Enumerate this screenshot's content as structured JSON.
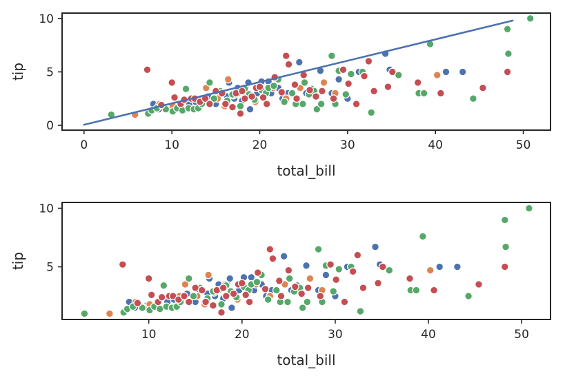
{
  "chart_data": [
    {
      "type": "scatter",
      "title": "",
      "xlabel": "total_bill",
      "ylabel": "tip",
      "xlim": [
        -2.5,
        53.1
      ],
      "ylim": [
        -0.45,
        10.5
      ],
      "xticks": [
        0,
        10,
        20,
        30,
        40,
        50
      ],
      "xtick_labels": [
        "0",
        "10",
        "20",
        "30",
        "40",
        "50"
      ],
      "yticks": [
        0,
        5,
        10
      ],
      "ytick_labels": [
        "0",
        "5",
        "10"
      ],
      "fit_line": {
        "x": [
          0,
          48.8
        ],
        "y": [
          0.05,
          9.8
        ],
        "color": "#4c72b0"
      },
      "grid": false,
      "legend": "none"
    },
    {
      "type": "scatter",
      "title": "",
      "xlabel": "total_bill",
      "ylabel": "tip",
      "xlim": [
        0.7,
        53.1
      ],
      "ylim": [
        0.5,
        10.5
      ],
      "xticks": [
        10,
        20,
        30,
        40,
        50
      ],
      "xtick_labels": [
        "10",
        "20",
        "30",
        "40",
        "50"
      ],
      "yticks": [
        5,
        10
      ],
      "ytick_labels": [
        "5",
        "10"
      ],
      "grid": false,
      "legend": "none"
    }
  ],
  "series": [
    {
      "name": "blue",
      "color": "#4c72b0",
      "points": [
        [
          7.9,
          2.0
        ],
        [
          8.5,
          1.5
        ],
        [
          9.8,
          1.7
        ],
        [
          10.3,
          1.7
        ],
        [
          11.0,
          1.5
        ],
        [
          12.0,
          2.0
        ],
        [
          12.7,
          2.2
        ],
        [
          13.4,
          2.0
        ],
        [
          14.1,
          2.7
        ],
        [
          15.0,
          2.0
        ],
        [
          15.4,
          3.0
        ],
        [
          16.3,
          2.7
        ],
        [
          16.5,
          4.0
        ],
        [
          17.1,
          2.5
        ],
        [
          17.5,
          3.5
        ],
        [
          18.0,
          2.3
        ],
        [
          18.4,
          3.6
        ],
        [
          18.7,
          4.0
        ],
        [
          18.9,
          1.5
        ],
        [
          19.4,
          2.5
        ],
        [
          19.7,
          3.0
        ],
        [
          20.2,
          4.1
        ],
        [
          20.6,
          3.2
        ],
        [
          21.0,
          4.1
        ],
        [
          21.3,
          3.0
        ],
        [
          22.1,
          3.5
        ],
        [
          22.6,
          2.5
        ],
        [
          23.2,
          3.0
        ],
        [
          24.5,
          5.9
        ],
        [
          24.8,
          2.0
        ],
        [
          25.3,
          3.0
        ],
        [
          25.9,
          3.4
        ],
        [
          26.9,
          5.1
        ],
        [
          28.2,
          3.0
        ],
        [
          29.0,
          4.3
        ],
        [
          30.0,
          2.5
        ],
        [
          31.3,
          5.0
        ],
        [
          34.3,
          6.7
        ],
        [
          34.8,
          5.2
        ],
        [
          40.2,
          4.7
        ],
        [
          41.2,
          5.0
        ],
        [
          43.1,
          5.0
        ]
      ]
    },
    {
      "name": "orange",
      "color": "#dd8452",
      "points": [
        [
          5.8,
          1.0
        ],
        [
          8.6,
          2.0
        ],
        [
          9.6,
          1.5
        ],
        [
          10.1,
          1.8
        ],
        [
          13.3,
          2.5
        ],
        [
          13.9,
          3.5
        ],
        [
          15.2,
          2.5
        ],
        [
          16.0,
          1.8
        ],
        [
          16.4,
          4.3
        ],
        [
          17.0,
          2.8
        ],
        [
          18.2,
          3.5
        ],
        [
          19.5,
          2.2
        ],
        [
          21.5,
          3.5
        ],
        [
          23.0,
          2.5
        ],
        [
          24.6,
          3.5
        ],
        [
          27.3,
          4.0
        ],
        [
          28.6,
          3.0
        ],
        [
          40.2,
          4.7
        ]
      ]
    },
    {
      "name": "green",
      "color": "#55a868",
      "points": [
        [
          3.1,
          1.0
        ],
        [
          7.3,
          1.1
        ],
        [
          7.7,
          1.4
        ],
        [
          8.3,
          1.6
        ],
        [
          9.3,
          1.5
        ],
        [
          10.1,
          1.3
        ],
        [
          10.6,
          1.6
        ],
        [
          11.2,
          1.4
        ],
        [
          11.6,
          3.4
        ],
        [
          11.9,
          1.6
        ],
        [
          12.5,
          1.5
        ],
        [
          13.0,
          1.6
        ],
        [
          13.4,
          2.0
        ],
        [
          14.3,
          4.0
        ],
        [
          14.8,
          2.5
        ],
        [
          15.5,
          3.2
        ],
        [
          16.3,
          2.3
        ],
        [
          16.9,
          2.9
        ],
        [
          17.5,
          3.0
        ],
        [
          17.8,
          1.8
        ],
        [
          18.3,
          3.4
        ],
        [
          18.8,
          2.9
        ],
        [
          19.4,
          2.4
        ],
        [
          20.2,
          3.3
        ],
        [
          20.7,
          3.0
        ],
        [
          21.0,
          3.5
        ],
        [
          21.6,
          3.7
        ],
        [
          22.1,
          4.3
        ],
        [
          22.8,
          2.2
        ],
        [
          23.7,
          3.0
        ],
        [
          24.1,
          2.0
        ],
        [
          24.9,
          2.0
        ],
        [
          25.1,
          4.0
        ],
        [
          25.6,
          2.9
        ],
        [
          26.2,
          3.2
        ],
        [
          26.5,
          1.5
        ],
        [
          27.0,
          2.0
        ],
        [
          28.2,
          6.5
        ],
        [
          28.6,
          2.0
        ],
        [
          29.0,
          5.1
        ],
        [
          29.8,
          2.9
        ],
        [
          30.4,
          4.8
        ],
        [
          31.7,
          5.0
        ],
        [
          32.7,
          1.2
        ],
        [
          35.8,
          4.7
        ],
        [
          38.1,
          3.0
        ],
        [
          38.7,
          3.0
        ],
        [
          39.4,
          7.6
        ],
        [
          44.3,
          2.5
        ],
        [
          48.2,
          9.0
        ],
        [
          48.3,
          6.7
        ],
        [
          50.8,
          10.0
        ]
      ]
    },
    {
      "name": "red",
      "color": "#c44e52",
      "points": [
        [
          7.2,
          5.2
        ],
        [
          8.8,
          1.9
        ],
        [
          10.0,
          4.0
        ],
        [
          10.3,
          2.6
        ],
        [
          11.0,
          2.0
        ],
        [
          11.4,
          2.4
        ],
        [
          12.2,
          2.5
        ],
        [
          12.6,
          2.5
        ],
        [
          13.2,
          2.2
        ],
        [
          13.8,
          2.5
        ],
        [
          14.3,
          2.0
        ],
        [
          15.0,
          3.2
        ],
        [
          15.7,
          3.0
        ],
        [
          16.1,
          2.0
        ],
        [
          16.9,
          1.7
        ],
        [
          17.3,
          3.0
        ],
        [
          17.8,
          1.1
        ],
        [
          18.0,
          3.2
        ],
        [
          18.3,
          2.5
        ],
        [
          19.1,
          2.7
        ],
        [
          19.6,
          3.5
        ],
        [
          20.0,
          3.6
        ],
        [
          20.4,
          2.6
        ],
        [
          20.8,
          2.0
        ],
        [
          21.7,
          4.5
        ],
        [
          22.5,
          3.1
        ],
        [
          23.0,
          6.5
        ],
        [
          23.3,
          5.7
        ],
        [
          24.0,
          3.8
        ],
        [
          24.2,
          2.5
        ],
        [
          25.0,
          4.7
        ],
        [
          25.7,
          3.3
        ],
        [
          26.4,
          2.7
        ],
        [
          27.1,
          3.2
        ],
        [
          28.4,
          2.5
        ],
        [
          29.5,
          5.2
        ],
        [
          30.1,
          3.9
        ],
        [
          31.0,
          2.0
        ],
        [
          31.9,
          4.6
        ],
        [
          32.4,
          6.0
        ],
        [
          33.0,
          3.2
        ],
        [
          34.6,
          3.6
        ],
        [
          35.1,
          5.0
        ],
        [
          38.0,
          4.0
        ],
        [
          40.6,
          3.0
        ],
        [
          45.4,
          3.5
        ],
        [
          48.2,
          5.0
        ]
      ]
    }
  ]
}
